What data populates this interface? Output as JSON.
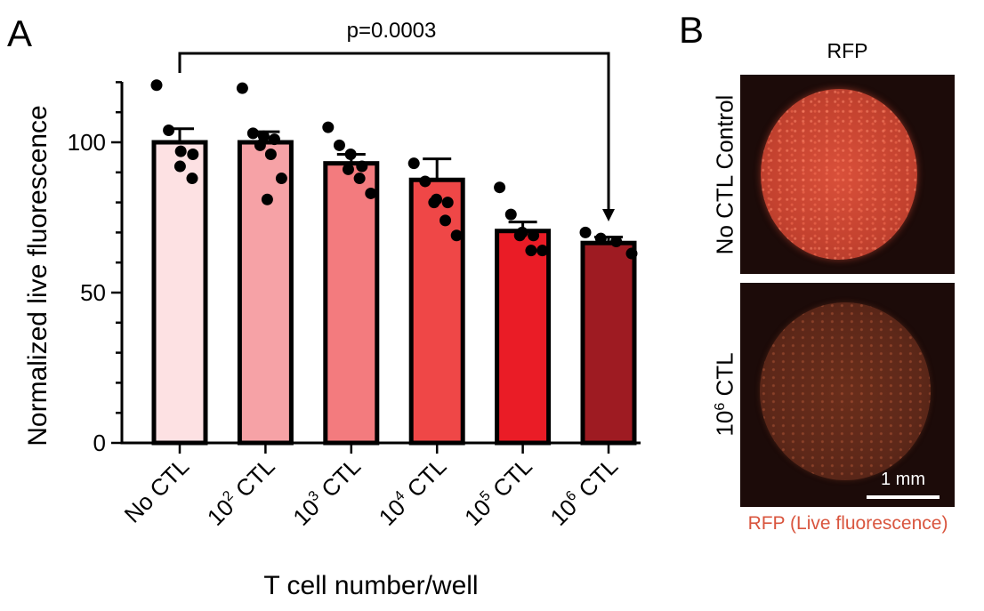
{
  "figure": {
    "panel_a_letter": "A",
    "panel_b_letter": "B"
  },
  "chart_data": {
    "type": "bar",
    "categories": [
      "No CTL",
      "10² CTL",
      "10³ CTL",
      "10⁴ CTL",
      "10⁵ CTL",
      "10⁶ CTL"
    ],
    "category_labels": [
      {
        "base": "No CTL",
        "sup": ""
      },
      {
        "base": "10",
        "sup": "2",
        "suffix": " CTL"
      },
      {
        "base": "10",
        "sup": "3",
        "suffix": " CTL"
      },
      {
        "base": "10",
        "sup": "4",
        "suffix": " CTL"
      },
      {
        "base": "10",
        "sup": "5",
        "suffix": " CTL"
      },
      {
        "base": "10",
        "sup": "6",
        "suffix": " CTL"
      }
    ],
    "values": [
      100,
      100,
      93,
      87.5,
      70.5,
      66.5
    ],
    "errors": [
      4.5,
      3.5,
      3,
      7,
      3,
      2
    ],
    "points": [
      [
        119,
        104,
        97,
        96,
        92,
        88
      ],
      [
        118,
        103,
        102,
        101,
        99,
        96,
        88,
        81
      ],
      [
        105,
        99,
        96,
        92,
        91,
        88,
        83
      ],
      [
        93,
        87,
        81,
        80,
        80,
        74,
        69
      ],
      [
        85,
        76,
        70,
        69,
        69,
        64,
        64
      ],
      [
        70,
        68,
        67,
        63
      ]
    ],
    "bar_colors": [
      "#fde1e3",
      "#f6a2a6",
      "#f37b7e",
      "#ef4747",
      "#ea1c26",
      "#9e1b22"
    ],
    "ylabel": "Normalized live fluorescence",
    "xlabel": "T cell number/well",
    "ylim": [
      0,
      120
    ],
    "yticks": [
      0,
      50,
      100
    ],
    "annotation": "p=0.0003",
    "annotation_between": [
      "No CTL",
      "10⁶ CTL"
    ]
  },
  "images": {
    "column_title": "RFP",
    "top_row_label": "No CTL Control",
    "bottom_row_label_base": "10",
    "bottom_row_label_sup": "6",
    "bottom_row_label_suffix": " CTL",
    "scalebar_label": "1 mm",
    "caption": "RFP (Live fluorescence)",
    "caption_color": "#d9553e"
  }
}
